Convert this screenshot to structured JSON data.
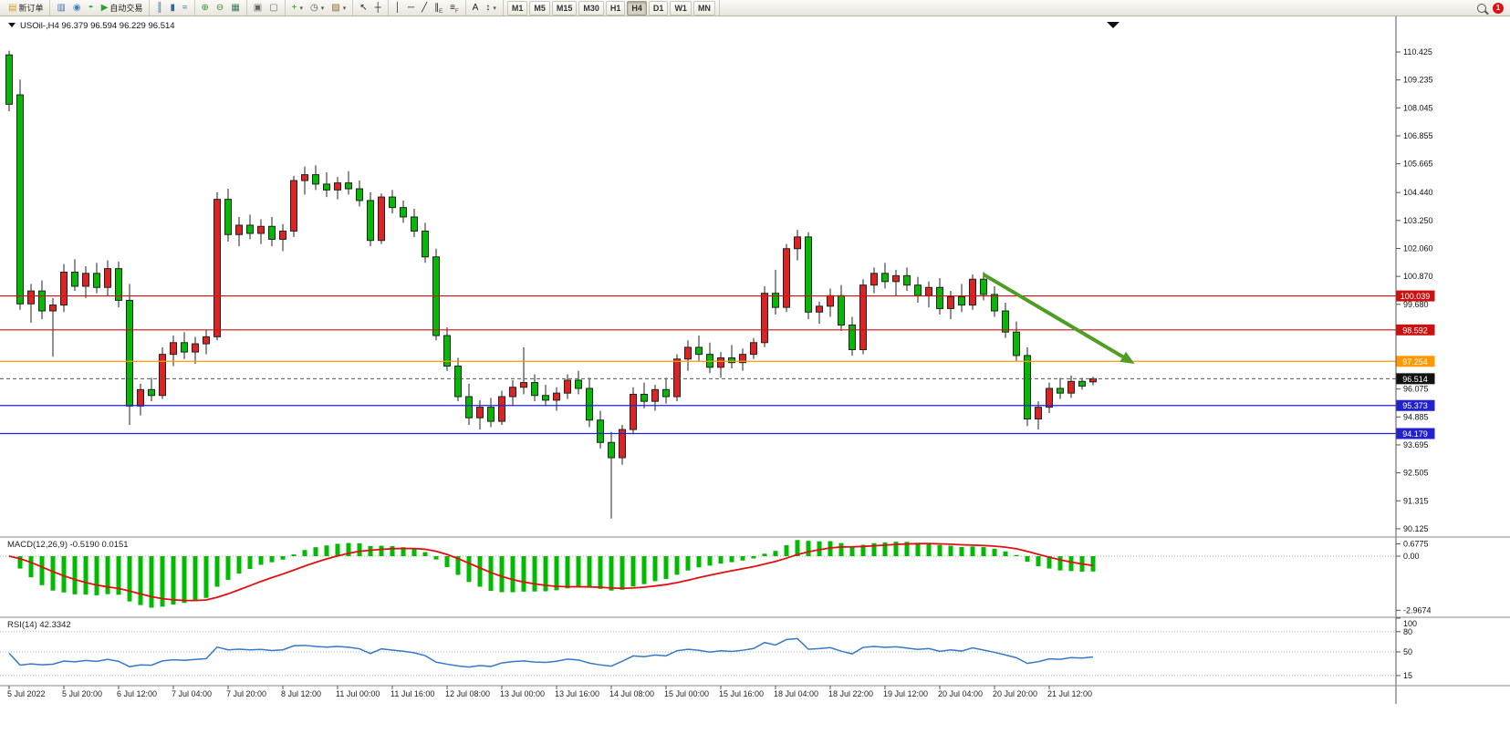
{
  "window": {
    "badge_count": "1"
  },
  "chart": {
    "title": "USOil-,H4 96.379 96.594 96.229 96.514"
  },
  "toolbar": {
    "dropdown_glyph": "▾",
    "groups": [
      {
        "items": [
          {
            "name": "new-order-button",
            "icon": "new-order-icon",
            "glyph": "▤",
            "color": "#c8a028",
            "label": "新订单"
          }
        ]
      },
      {
        "items": [
          {
            "name": "new-chart-button",
            "icon": "new-chart-icon",
            "glyph": "▥",
            "color": "#4a6fb5"
          },
          {
            "name": "profiles-button",
            "icon": "profiles-icon",
            "glyph": "◉",
            "color": "#3f7fbf"
          },
          {
            "name": "alerts-button",
            "icon": "alerts-icon",
            "glyph": "◓",
            "color": "#3f9f5f"
          },
          {
            "name": "auto-trade-button",
            "icon": "auto-trade-icon",
            "glyph": "▶",
            "color": "#2e9e2e",
            "label": "自动交易"
          }
        ]
      },
      {
        "items": [
          {
            "name": "bar-chart-button",
            "icon": "bar-chart-icon",
            "glyph": "║",
            "color": "#356a9a"
          },
          {
            "name": "candle-chart-button",
            "icon": "candlestick-chart-icon",
            "glyph": "▮",
            "color": "#356a9a"
          },
          {
            "name": "line-chart-button",
            "icon": "line-chart-icon",
            "glyph": "≈",
            "color": "#356a9a"
          }
        ]
      },
      {
        "items": [
          {
            "name": "zoom-in-button",
            "icon": "zoom-in-icon",
            "glyph": "⊕",
            "color": "#3a8a3a"
          },
          {
            "name": "zoom-out-button",
            "icon": "zoom-out-icon",
            "glyph": "⊖",
            "color": "#3a8a3a"
          },
          {
            "name": "grid-button",
            "icon": "grid-icon",
            "glyph": "▦",
            "color": "#3a7a5a"
          }
        ]
      },
      {
        "items": [
          {
            "name": "tile-windows-button",
            "icon": "tile-windows-icon",
            "glyph": "▣",
            "color": "#666666"
          },
          {
            "name": "cascade-windows-button",
            "icon": "cascade-windows-icon",
            "glyph": "▢",
            "color": "#666666"
          }
        ]
      },
      {
        "items": [
          {
            "name": "indicators-button",
            "icon": "add-indicator-icon",
            "glyph": "+",
            "color": "#1e8e1e",
            "dd": true
          },
          {
            "name": "periods-button",
            "icon": "clock-icon",
            "glyph": "◷",
            "color": "#555555",
            "dd": true
          },
          {
            "name": "templates-button",
            "icon": "template-icon",
            "glyph": "▨",
            "color": "#8a6a3a",
            "dd": true
          }
        ]
      },
      {
        "items": [
          {
            "name": "cursor-button",
            "icon": "cursor-icon",
            "glyph": "↖",
            "color": "#222222"
          },
          {
            "name": "crosshair-button",
            "icon": "crosshair-icon",
            "glyph": "┼",
            "color": "#222222"
          }
        ]
      },
      {
        "items": [
          {
            "name": "vertical-line-button",
            "icon": "vertical-line-icon",
            "glyph": "│",
            "color": "#222222"
          },
          {
            "name": "horizontal-line-button",
            "icon": "horizontal-line-icon",
            "glyph": "─",
            "color": "#222222"
          },
          {
            "name": "trendline-button",
            "icon": "trendline-icon",
            "glyph": "╱",
            "color": "#222222"
          },
          {
            "name": "channel-button",
            "icon": "equidistant-channel-icon",
            "glyph": "∥",
            "color": "#222222",
            "sub": "E"
          },
          {
            "name": "fibonacci-button",
            "icon": "fibonacci-icon",
            "glyph": "≡",
            "color": "#222222",
            "sub": "F"
          }
        ]
      },
      {
        "items": [
          {
            "name": "text-button",
            "icon": "text-icon",
            "glyph": "A",
            "color": "#222222"
          },
          {
            "name": "arrows-button",
            "icon": "arrow-tool-icon",
            "glyph": "↕",
            "color": "#222222",
            "dd": true
          }
        ]
      }
    ],
    "timeframes": [
      "M1",
      "M5",
      "M15",
      "M30",
      "H1",
      "H4",
      "D1",
      "W1",
      "MN"
    ],
    "active_timeframe": "H4"
  },
  "chart_data": {
    "type": "candlestick",
    "symbol": "USOil-",
    "timeframe": "H4",
    "ohlc_header": {
      "open": "96.379",
      "high": "96.594",
      "low": "96.229",
      "close": "96.514"
    },
    "colors": {
      "up_fill": "#e02222",
      "down_fill": "#00bb00",
      "candle_stroke": "#222222",
      "wick": "#222222",
      "bid_line": "#555555",
      "macd_hist": "#00bb00",
      "macd_signal": "#e01010",
      "rsi_line": "#3579c8"
    },
    "price_ticks": [
      "110.425",
      "109.235",
      "108.045",
      "106.855",
      "105.665",
      "104.440",
      "103.250",
      "102.060",
      "100.870",
      "99.680",
      "96.075",
      "94.885",
      "93.695",
      "92.505",
      "91.315",
      "90.125"
    ],
    "hlines": [
      {
        "value": 100.039,
        "label": "100.039",
        "color": "#cc1111"
      },
      {
        "value": 98.592,
        "label": "98.592",
        "color": "#cc1111"
      },
      {
        "value": 97.254,
        "label": "97.254",
        "color": "#ff9900"
      },
      {
        "value": 95.373,
        "label": "95.373",
        "color": "#2222cc"
      },
      {
        "value": 94.179,
        "label": "94.179",
        "color": "#2222cc"
      }
    ],
    "current_price": {
      "value": 96.514,
      "label": "96.514",
      "color": "#111111"
    },
    "trend_arrow": {
      "from_index": 89,
      "from_price": 100.95,
      "to_index": 102.8,
      "to_price": 97.15,
      "color": "#4f9d23"
    },
    "macd": {
      "label": "MACD(12,26,9) -0.5190 0.0151",
      "params": [
        12,
        26,
        9
      ],
      "scale_labels": [
        "0.6775",
        "0.00",
        "-2.9674"
      ]
    },
    "rsi": {
      "label": "RSI(14) 42.3342",
      "period": 14,
      "scale_labels": [
        "100",
        "80",
        "50",
        "15"
      ],
      "levels": [
        80,
        50,
        15
      ]
    },
    "dates": [
      "5 Jul 2022",
      "5 Jul 20:00",
      "6 Jul 12:00",
      "7 Jul 04:00",
      "7 Jul 20:00",
      "8 Jul 12:00",
      "11 Jul 00:00",
      "11 Jul 16:00",
      "12 Jul 08:00",
      "13 Jul 00:00",
      "13 Jul 16:00",
      "14 Jul 08:00",
      "15 Jul 00:00",
      "15 Jul 16:00",
      "18 Jul 04:00",
      "18 Jul 22:00",
      "19 Jul 12:00",
      "20 Jul 04:00",
      "20 Jul 20:00",
      "21 Jul 12:00"
    ],
    "candles": [
      [
        110.3,
        110.48,
        107.9,
        108.2
      ],
      [
        108.6,
        109.25,
        99.45,
        99.7
      ],
      [
        99.7,
        100.55,
        98.9,
        100.25
      ],
      [
        100.25,
        100.7,
        99.05,
        99.4
      ],
      [
        99.4,
        99.95,
        97.45,
        99.65
      ],
      [
        99.65,
        101.4,
        99.35,
        101.05
      ],
      [
        101.05,
        101.6,
        100.25,
        100.45
      ],
      [
        100.45,
        101.3,
        99.95,
        101.0
      ],
      [
        101.0,
        101.45,
        100.15,
        100.4
      ],
      [
        100.4,
        101.55,
        100.05,
        101.2
      ],
      [
        101.2,
        101.5,
        99.55,
        99.85
      ],
      [
        99.85,
        100.55,
        94.55,
        95.35
      ],
      [
        95.35,
        96.3,
        94.95,
        96.05
      ],
      [
        96.05,
        96.55,
        95.55,
        95.8
      ],
      [
        95.8,
        97.85,
        95.65,
        97.55
      ],
      [
        97.55,
        98.35,
        97.05,
        98.05
      ],
      [
        98.05,
        98.5,
        97.35,
        97.65
      ],
      [
        97.65,
        98.3,
        97.15,
        98.0
      ],
      [
        98.0,
        98.6,
        97.55,
        98.3
      ],
      [
        98.3,
        104.45,
        98.15,
        104.15
      ],
      [
        104.15,
        104.6,
        102.35,
        102.65
      ],
      [
        102.65,
        103.4,
        102.15,
        103.05
      ],
      [
        103.05,
        103.5,
        102.45,
        102.7
      ],
      [
        102.7,
        103.3,
        102.25,
        103.0
      ],
      [
        103.0,
        103.4,
        102.15,
        102.45
      ],
      [
        102.45,
        103.1,
        101.95,
        102.8
      ],
      [
        102.8,
        105.15,
        102.55,
        104.95
      ],
      [
        104.95,
        105.55,
        104.35,
        105.2
      ],
      [
        105.2,
        105.6,
        104.55,
        104.8
      ],
      [
        104.8,
        105.3,
        104.25,
        104.55
      ],
      [
        104.55,
        105.1,
        104.15,
        104.85
      ],
      [
        104.85,
        105.35,
        104.35,
        104.6
      ],
      [
        104.6,
        104.95,
        103.85,
        104.1
      ],
      [
        104.1,
        104.45,
        102.15,
        102.4
      ],
      [
        102.4,
        104.4,
        102.25,
        104.25
      ],
      [
        104.25,
        104.55,
        103.55,
        103.8
      ],
      [
        103.8,
        104.1,
        103.15,
        103.4
      ],
      [
        103.4,
        103.75,
        102.55,
        102.8
      ],
      [
        102.8,
        103.15,
        101.45,
        101.7
      ],
      [
        101.7,
        102.05,
        98.15,
        98.35
      ],
      [
        98.35,
        98.7,
        96.85,
        97.05
      ],
      [
        97.05,
        97.4,
        95.55,
        95.75
      ],
      [
        95.75,
        96.3,
        94.55,
        94.85
      ],
      [
        94.85,
        95.6,
        94.35,
        95.3
      ],
      [
        95.3,
        95.7,
        94.45,
        94.7
      ],
      [
        94.7,
        96.0,
        94.55,
        95.75
      ],
      [
        95.75,
        96.45,
        95.35,
        96.15
      ],
      [
        96.15,
        97.85,
        95.85,
        96.35
      ],
      [
        96.35,
        96.7,
        95.55,
        95.8
      ],
      [
        95.8,
        96.25,
        95.35,
        95.6
      ],
      [
        95.6,
        96.15,
        95.15,
        95.9
      ],
      [
        95.9,
        96.7,
        95.65,
        96.45
      ],
      [
        96.45,
        96.85,
        95.85,
        96.1
      ],
      [
        96.1,
        96.55,
        94.45,
        94.75
      ],
      [
        94.75,
        95.15,
        93.55,
        93.8
      ],
      [
        93.8,
        94.25,
        90.56,
        93.15
      ],
      [
        93.15,
        94.55,
        92.85,
        94.35
      ],
      [
        94.35,
        96.15,
        94.15,
        95.85
      ],
      [
        95.85,
        96.35,
        95.25,
        95.55
      ],
      [
        95.55,
        96.25,
        95.15,
        96.05
      ],
      [
        96.05,
        96.55,
        95.45,
        95.75
      ],
      [
        95.75,
        97.55,
        95.55,
        97.35
      ],
      [
        97.35,
        98.15,
        96.85,
        97.85
      ],
      [
        97.85,
        98.35,
        97.25,
        97.55
      ],
      [
        97.55,
        98.05,
        96.75,
        97.0
      ],
      [
        97.0,
        97.65,
        96.55,
        97.4
      ],
      [
        97.4,
        97.95,
        96.95,
        97.2
      ],
      [
        97.2,
        97.8,
        96.85,
        97.55
      ],
      [
        97.55,
        98.25,
        97.35,
        98.05
      ],
      [
        98.05,
        100.45,
        97.85,
        100.15
      ],
      [
        100.15,
        101.15,
        99.25,
        99.55
      ],
      [
        99.55,
        102.25,
        99.35,
        102.05
      ],
      [
        102.05,
        102.85,
        101.55,
        102.55
      ],
      [
        102.55,
        102.75,
        99.05,
        99.35
      ],
      [
        99.35,
        99.8,
        98.85,
        99.6
      ],
      [
        99.6,
        100.35,
        99.15,
        100.05
      ],
      [
        100.05,
        100.5,
        98.55,
        98.8
      ],
      [
        98.8,
        99.15,
        97.5,
        97.75
      ],
      [
        97.75,
        100.75,
        97.55,
        100.5
      ],
      [
        100.5,
        101.25,
        100.15,
        101.0
      ],
      [
        101.0,
        101.45,
        100.35,
        100.65
      ],
      [
        100.65,
        101.15,
        100.05,
        100.9
      ],
      [
        100.9,
        101.25,
        100.25,
        100.5
      ],
      [
        100.5,
        100.85,
        99.75,
        100.05
      ],
      [
        100.05,
        100.65,
        99.55,
        100.4
      ],
      [
        100.4,
        100.8,
        99.25,
        99.5
      ],
      [
        99.5,
        100.25,
        99.05,
        100.0
      ],
      [
        100.0,
        100.55,
        99.35,
        99.65
      ],
      [
        99.65,
        100.95,
        99.45,
        100.75
      ],
      [
        100.75,
        101.05,
        99.85,
        100.1
      ],
      [
        100.1,
        100.45,
        99.15,
        99.4
      ],
      [
        99.4,
        99.75,
        98.25,
        98.5
      ],
      [
        98.5,
        98.95,
        97.25,
        97.5
      ],
      [
        97.5,
        97.85,
        94.5,
        94.8
      ],
      [
        94.8,
        95.55,
        94.35,
        95.3
      ],
      [
        95.3,
        96.35,
        95.05,
        96.1
      ],
      [
        96.1,
        96.55,
        95.65,
        95.9
      ],
      [
        95.9,
        96.65,
        95.7,
        96.4
      ],
      [
        96.4,
        96.55,
        96.05,
        96.2
      ],
      [
        96.379,
        96.594,
        96.229,
        96.514
      ]
    ]
  }
}
